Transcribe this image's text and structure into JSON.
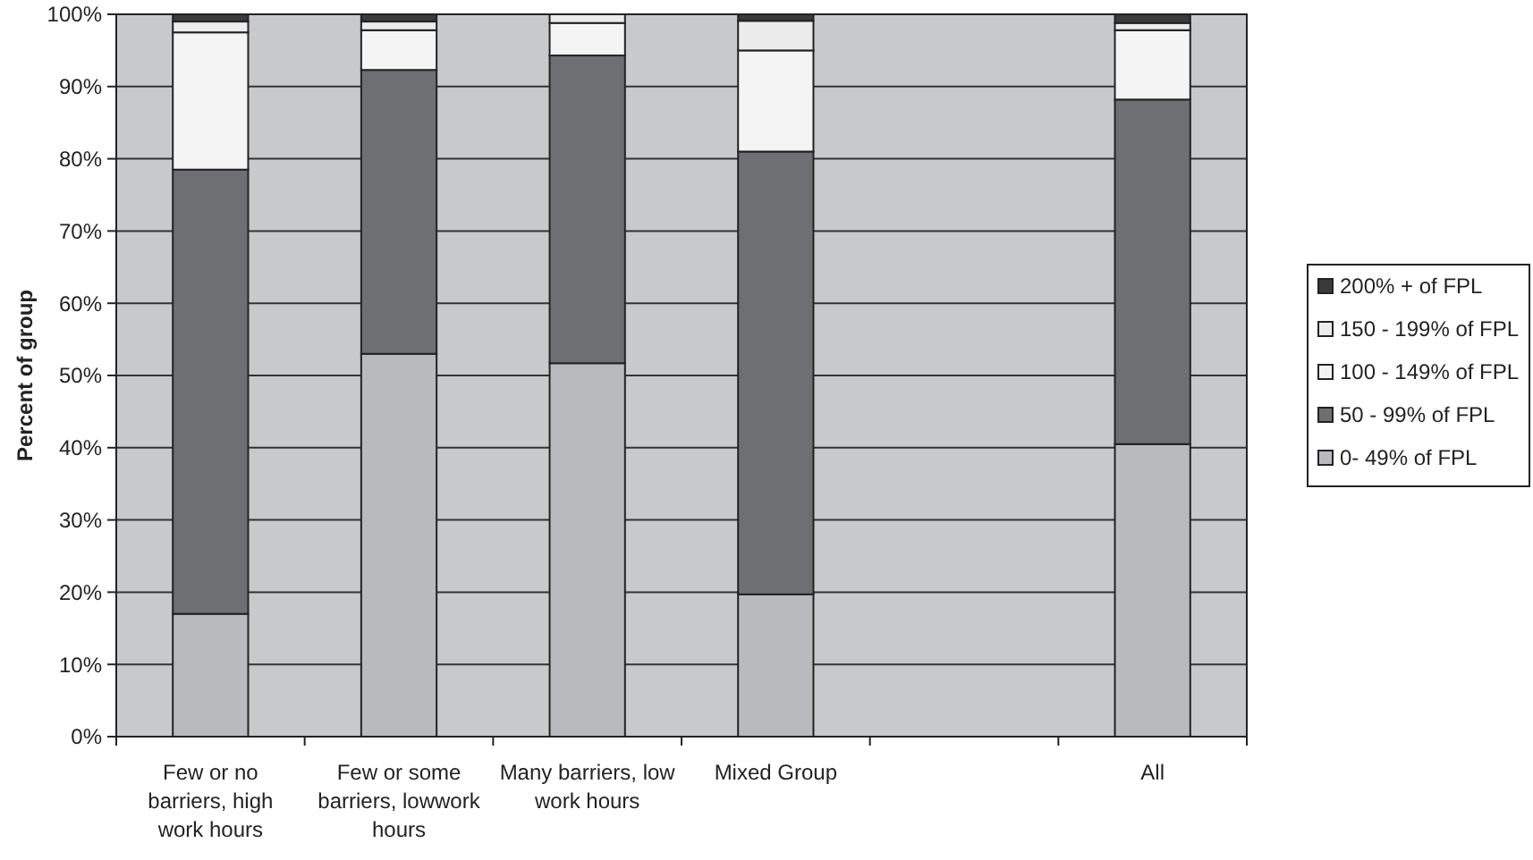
{
  "chart_data": {
    "type": "bar",
    "stacked": true,
    "ylabel": "Percent of group",
    "categories": [
      "Few  or no barriers, high work hours",
      "Few  or some barriers, lowwork hours",
      "Many barriers, low work hours",
      "Mixed Group",
      null,
      "All"
    ],
    "series": [
      {
        "name": "0- 49% of FPL",
        "color": "#b9babd",
        "values": [
          17,
          53,
          51.7,
          19.7,
          null,
          40.5
        ]
      },
      {
        "name": "50 - 99% of FPL",
        "color": "#6e6f73",
        "values": [
          61.5,
          39.3,
          42.6,
          61.3,
          null,
          47.7
        ]
      },
      {
        "name": "100 - 149% of FPL",
        "color": "#f4f4f4",
        "values": [
          19,
          5.5,
          4.5,
          14,
          null,
          9.6
        ]
      },
      {
        "name": "150 - 199% of FPL",
        "color": "#ececec",
        "values": [
          1.5,
          1.2,
          1.2,
          4.1,
          null,
          1
        ]
      },
      {
        "name": "200% + of FPL",
        "color": "#3a3a3c",
        "values": [
          1,
          1,
          0,
          0.9,
          null,
          1.2
        ]
      }
    ],
    "ylim": [
      0,
      100
    ],
    "yticks": [
      {
        "value": 0,
        "label": "0%"
      },
      {
        "value": 10,
        "label": "10%"
      },
      {
        "value": 20,
        "label": "20%"
      },
      {
        "value": 30,
        "label": "30%"
      },
      {
        "value": 40,
        "label": "40%"
      },
      {
        "value": 50,
        "label": "50%"
      },
      {
        "value": 60,
        "label": "60%"
      },
      {
        "value": 70,
        "label": "70%"
      },
      {
        "value": 80,
        "label": "80%"
      },
      {
        "value": 90,
        "label": "90%"
      },
      {
        "value": 100,
        "label": "100%"
      }
    ],
    "grid": "y",
    "legend": "right"
  }
}
